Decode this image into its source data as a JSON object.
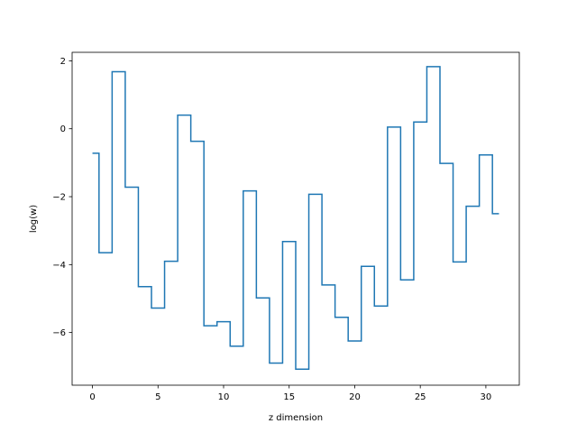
{
  "chart_data": {
    "type": "line",
    "drawstyle": "steps-mid",
    "title": "",
    "xlabel": "z dimension",
    "ylabel": "log(w)",
    "xlim": [
      -1.55,
      32.55
    ],
    "ylim": [
      -7.55,
      2.25
    ],
    "grid": false,
    "line_color": "#1f77b4",
    "xticks": [
      0,
      5,
      10,
      15,
      20,
      25,
      30
    ],
    "xtick_labels": [
      "0",
      "5",
      "10",
      "15",
      "20",
      "25",
      "30"
    ],
    "yticks": [
      -6,
      -4,
      -2,
      0,
      2
    ],
    "ytick_labels": [
      "−6",
      "−4",
      "−2",
      "0",
      "2"
    ],
    "x": [
      0,
      1,
      2,
      3,
      4,
      5,
      6,
      7,
      8,
      9,
      10,
      11,
      12,
      13,
      14,
      15,
      16,
      17,
      18,
      19,
      20,
      21,
      22,
      23,
      24,
      25,
      26,
      27,
      28,
      29,
      30,
      31
    ],
    "values": [
      -0.72,
      -3.65,
      1.68,
      -1.72,
      -4.65,
      -5.28,
      -3.9,
      0.4,
      -0.37,
      -5.8,
      -5.68,
      -6.4,
      -1.83,
      -4.98,
      -6.9,
      -3.32,
      -7.08,
      -1.93,
      -4.6,
      -5.55,
      -6.25,
      -4.05,
      -5.22,
      0.05,
      -4.45,
      0.2,
      1.83,
      -1.02,
      -3.92,
      -2.28,
      -0.77,
      -2.5
    ]
  }
}
